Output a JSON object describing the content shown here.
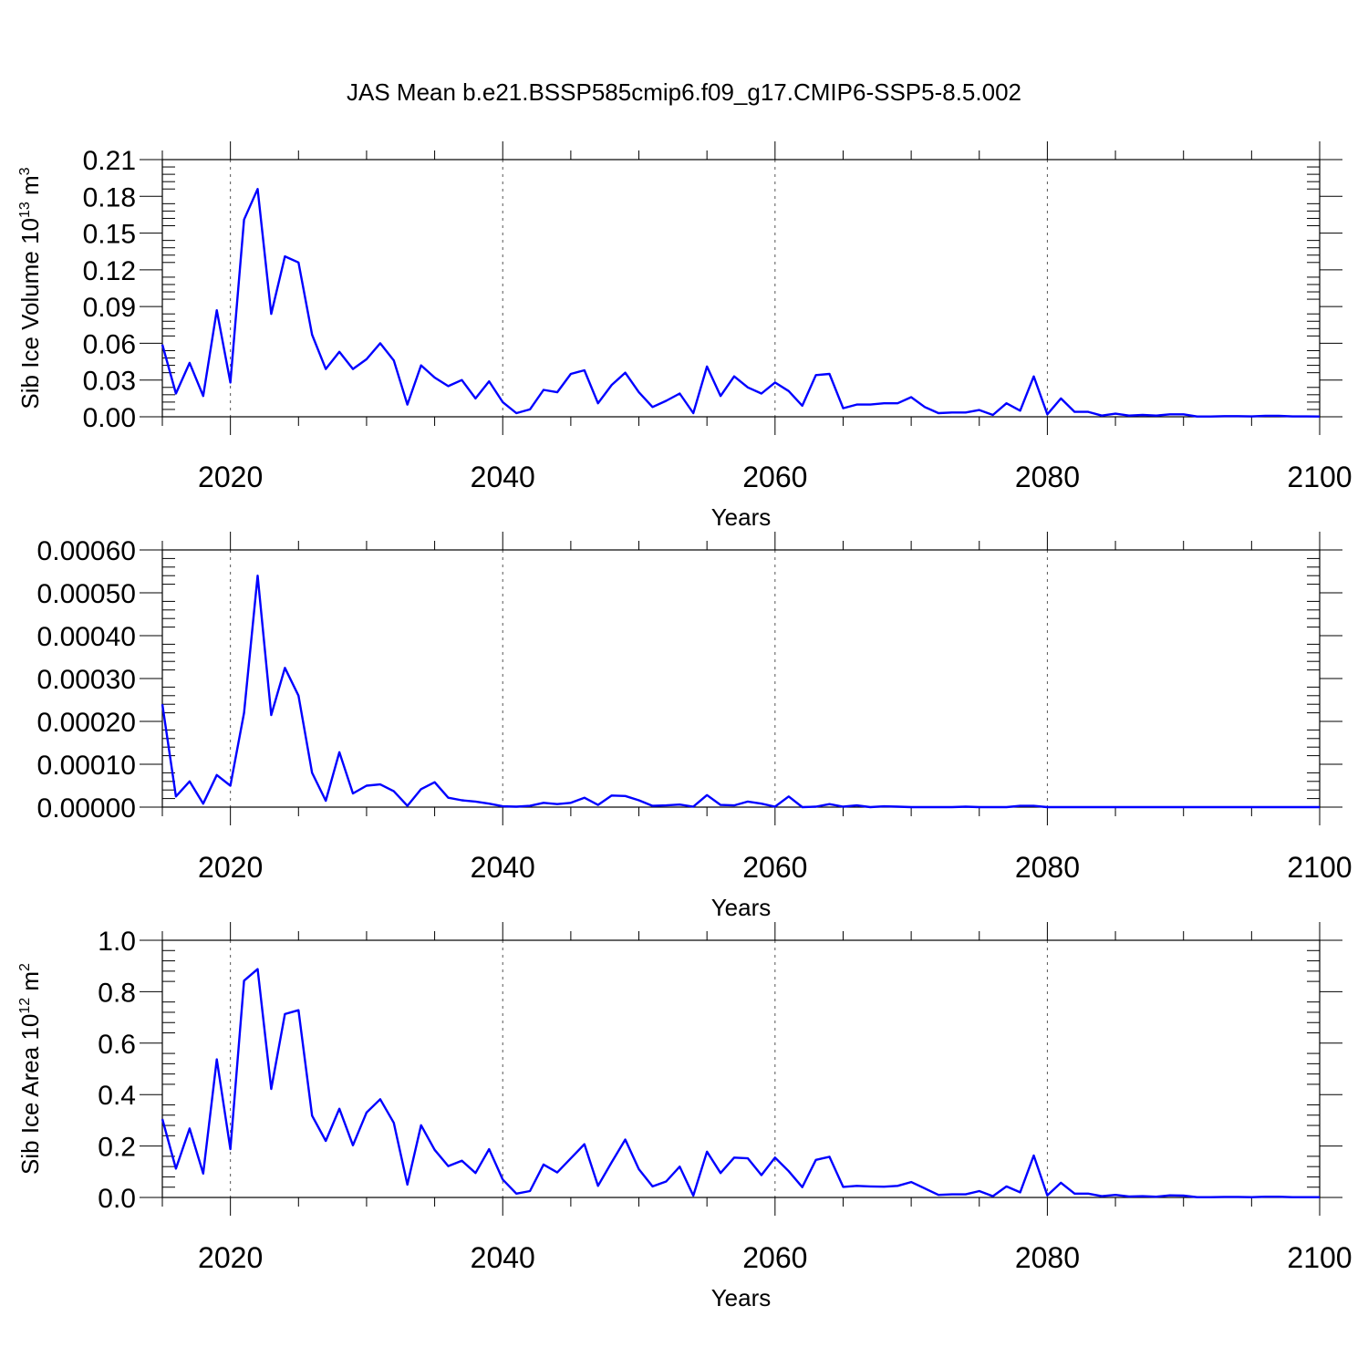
{
  "title": "JAS Mean b.e21.BSSP585cmip6.f09_g17.CMIP6-SSP5-8.5.002",
  "chart_data": [
    {
      "type": "line",
      "xlabel": "Years",
      "ylabel": {
        "prefix": "Sib Ice Volume 10",
        "exp": "13",
        "unit": " m",
        "unit_exp": "3"
      },
      "xlim": [
        2015,
        2100
      ],
      "ylim": [
        0,
        0.21
      ],
      "xticks": [
        2020,
        2040,
        2060,
        2080,
        2100
      ],
      "xtick_labels": [
        "2020",
        "2040",
        "2060",
        "2080",
        "2100"
      ],
      "yticks": [
        0,
        0.03,
        0.06,
        0.09,
        0.12,
        0.15,
        0.18,
        0.21
      ],
      "ytick_labels": [
        "0.00",
        "0.03",
        "0.06",
        "0.09",
        "0.12",
        "0.15",
        "0.18",
        "0.21"
      ],
      "grid": "vertical dashed at major x ticks",
      "color": "#0000ff",
      "x_start": 2015,
      "values": [
        0.059,
        0.019,
        0.044,
        0.017,
        0.087,
        0.028,
        0.161,
        0.186,
        0.084,
        0.131,
        0.126,
        0.067,
        0.039,
        0.053,
        0.039,
        0.047,
        0.06,
        0.046,
        0.01,
        0.042,
        0.032,
        0.025,
        0.03,
        0.015,
        0.029,
        0.012,
        0.003,
        0.006,
        0.022,
        0.02,
        0.035,
        0.038,
        0.011,
        0.026,
        0.036,
        0.02,
        0.008,
        0.013,
        0.019,
        0.003,
        0.041,
        0.017,
        0.033,
        0.024,
        0.019,
        0.028,
        0.021,
        0.009,
        0.034,
        0.035,
        0.007,
        0.01,
        0.01,
        0.011,
        0.011,
        0.016,
        0.008,
        0.003,
        0.0035,
        0.0035,
        0.0055,
        0.0015,
        0.011,
        0.005,
        0.033,
        0.002,
        0.015,
        0.004,
        0.004,
        0.001,
        0.0025,
        0.001,
        0.0015,
        0.001,
        0.002,
        0.002,
        0.0002,
        0.0002,
        0.0005,
        0.0005,
        0.0003,
        0.0008,
        0.0008,
        0.0003,
        0.0003,
        0.0002
      ]
    },
    {
      "type": "line",
      "xlabel": "Years",
      "ylabel": null,
      "xlim": [
        2015,
        2100
      ],
      "ylim": [
        0,
        0.0006
      ],
      "xticks": [
        2020,
        2040,
        2060,
        2080,
        2100
      ],
      "xtick_labels": [
        "2020",
        "2040",
        "2060",
        "2080",
        "2100"
      ],
      "yticks": [
        0,
        0.0001,
        0.0002,
        0.0003,
        0.0004,
        0.0005,
        0.0006
      ],
      "ytick_labels": [
        "0.00000",
        "0.00010",
        "0.00020",
        "0.00030",
        "0.00040",
        "0.00050",
        "0.00060"
      ],
      "grid": "vertical dashed at major x ticks",
      "color": "#0000ff",
      "x_start": 2015,
      "values": [
        0.00024,
        2.5e-05,
        6e-05,
        8e-06,
        7.5e-05,
        5e-05,
        0.00022,
        0.00054,
        0.000215,
        0.000325,
        0.00026,
        8e-05,
        1.5e-05,
        0.000128,
        3.2e-05,
        5e-05,
        5.3e-05,
        3.7e-05,
        3e-06,
        4.2e-05,
        5.8e-05,
        2.2e-05,
        1.6e-05,
        1.3e-05,
        8e-06,
        2e-06,
        1e-06,
        3e-06,
        1e-05,
        7e-06,
        1e-05,
        2.2e-05,
        5e-06,
        2.7e-05,
        2.6e-05,
        1.6e-05,
        3e-06,
        4e-06,
        6e-06,
        1e-06,
        2.8e-05,
        5e-06,
        4e-06,
        1.3e-05,
        8e-06,
        1e-06,
        2.5e-05,
        0.0,
        1e-06,
        7e-06,
        1e-06,
        4e-06,
        0.0,
        2e-06,
        1e-06,
        0.0,
        0.0,
        0.0,
        0.0,
        1e-06,
        0.0,
        0.0,
        0.0,
        3e-06,
        3e-06,
        0.0,
        0.0,
        0.0,
        0.0,
        0.0,
        0.0,
        0.0,
        0.0,
        0.0,
        0.0,
        0.0,
        0.0,
        0.0,
        0.0,
        0.0,
        0.0,
        0.0,
        0.0,
        0.0,
        0.0,
        0.0
      ]
    },
    {
      "type": "line",
      "xlabel": "Years",
      "ylabel": {
        "prefix": "Sib Ice Area 10",
        "exp": "12",
        "unit": " m",
        "unit_exp": "2"
      },
      "xlim": [
        2015,
        2100
      ],
      "ylim": [
        0,
        1.0
      ],
      "xticks": [
        2020,
        2040,
        2060,
        2080,
        2100
      ],
      "xtick_labels": [
        "2020",
        "2040",
        "2060",
        "2080",
        "2100"
      ],
      "yticks": [
        0,
        0.2,
        0.4,
        0.6,
        0.8,
        1.0
      ],
      "ytick_labels": [
        "0.0",
        "0.2",
        "0.4",
        "0.6",
        "0.8",
        "1.0"
      ],
      "grid": "vertical dashed at major x ticks",
      "color": "#0000ff",
      "x_start": 2015,
      "values": [
        0.305,
        0.112,
        0.268,
        0.093,
        0.537,
        0.188,
        0.843,
        0.888,
        0.422,
        0.713,
        0.728,
        0.318,
        0.22,
        0.345,
        0.203,
        0.33,
        0.382,
        0.29,
        0.05,
        0.281,
        0.185,
        0.122,
        0.143,
        0.095,
        0.188,
        0.07,
        0.015,
        0.025,
        0.128,
        0.097,
        0.152,
        0.207,
        0.045,
        0.137,
        0.225,
        0.11,
        0.043,
        0.062,
        0.12,
        0.007,
        0.178,
        0.095,
        0.155,
        0.152,
        0.087,
        0.155,
        0.102,
        0.04,
        0.146,
        0.158,
        0.041,
        0.045,
        0.043,
        0.042,
        0.045,
        0.06,
        0.035,
        0.01,
        0.012,
        0.012,
        0.025,
        0.005,
        0.043,
        0.02,
        0.163,
        0.008,
        0.057,
        0.015,
        0.015,
        0.005,
        0.01,
        0.004,
        0.005,
        0.003,
        0.008,
        0.007,
        0.001,
        0.001,
        0.002,
        0.002,
        0.001,
        0.003,
        0.003,
        0.001,
        0.001,
        0.001
      ]
    }
  ]
}
